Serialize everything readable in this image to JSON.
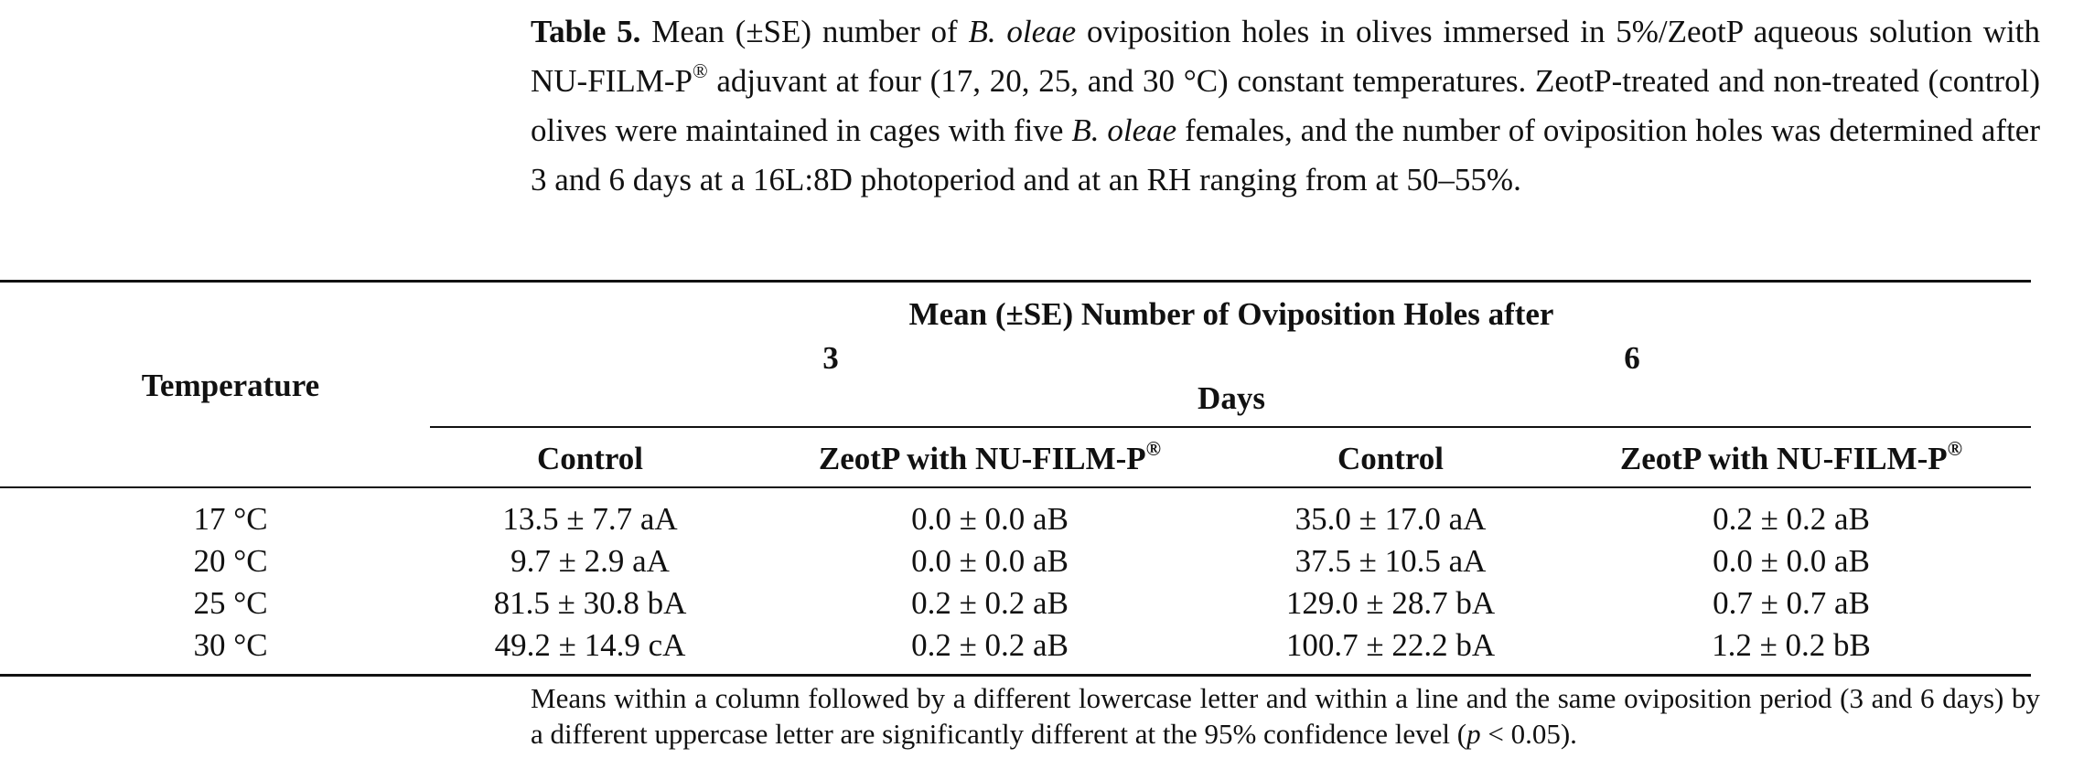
{
  "caption": {
    "label": "Table 5.",
    "seg1": " Mean (±SE) number of ",
    "species1": "B. oleae",
    "seg2": " oviposition holes in olives immersed in 5%/ZeotP aqueous solution with NU-FILM-P",
    "reg": "®",
    "seg3": " adjuvant at four (17, 20, 25, and 30 °C) constant temperatures. ZeotP-treated and non-treated (control) olives were maintained in cages with five ",
    "species2": "B. oleae",
    "seg4": " females, and the number of oviposition holes was determined after 3 and 6 days at a 16L:8D photoperiod and at an RH ranging from at 50–55%."
  },
  "table": {
    "temperature_header": "Temperature",
    "group_header": "Mean (±SE) Number of Oviposition Holes after",
    "days_3": "3",
    "days_6": "6",
    "days_label": "Days",
    "columns": [
      "Control",
      "ZeotP with NU-FILM-P",
      "Control",
      "ZeotP with NU-FILM-P"
    ],
    "reg": "®",
    "rows": [
      {
        "temp": "17 °C",
        "c3": "13.5 ± 7.7 aA",
        "z3": "0.0 ± 0.0 aB",
        "c6": "35.0 ± 17.0 aA",
        "z6": "0.2 ± 0.2 aB"
      },
      {
        "temp": "20 °C",
        "c3": "9.7 ± 2.9 aA",
        "z3": "0.0 ± 0.0 aB",
        "c6": "37.5 ± 10.5 aA",
        "z6": "0.0 ± 0.0 aB"
      },
      {
        "temp": "25 °C",
        "c3": "81.5 ± 30.8 bA",
        "z3": "0.2 ± 0.2 aB",
        "c6": "129.0 ± 28.7 bA",
        "z6": "0.7 ± 0.7 aB"
      },
      {
        "temp": "30 °C",
        "c3": "49.2 ± 14.9 cA",
        "z3": "0.2 ± 0.2 aB",
        "c6": "100.7 ± 22.2 bA",
        "z6": "1.2 ± 0.2 bB"
      }
    ]
  },
  "footnote": {
    "seg1": "Means within a column followed by a different lowercase letter and within a line and the same oviposition period (3 and 6 days) by a different uppercase letter are significantly different at the 95% confidence level (",
    "p": "p",
    "seg2": " < 0.05)."
  }
}
